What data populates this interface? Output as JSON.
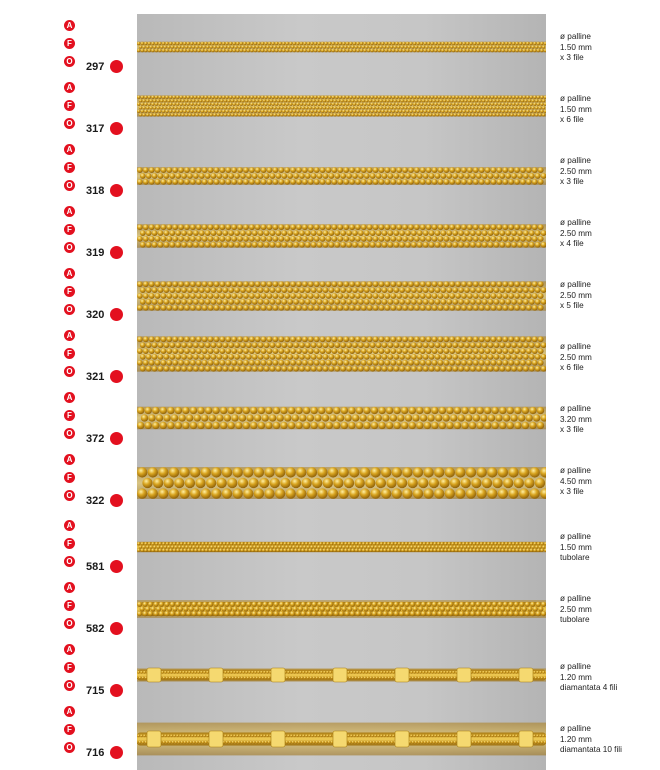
{
  "badges": [
    "A",
    "F",
    "O"
  ],
  "rows": [
    {
      "code": "297",
      "l1": "ø palline",
      "l2": "1.50 mm",
      "l3": "x 3 file",
      "strands": 3,
      "bead": 1.5,
      "kind": "ball"
    },
    {
      "code": "317",
      "l1": "ø palline",
      "l2": "1.50 mm",
      "l3": "x 6 file",
      "strands": 6,
      "bead": 1.5,
      "kind": "ball"
    },
    {
      "code": "318",
      "l1": "ø palline",
      "l2": "2.50 mm",
      "l3": "x 3 file",
      "strands": 3,
      "bead": 2.5,
      "kind": "ball"
    },
    {
      "code": "319",
      "l1": "ø palline",
      "l2": "2.50 mm",
      "l3": "x 4 file",
      "strands": 4,
      "bead": 2.5,
      "kind": "ball"
    },
    {
      "code": "320",
      "l1": "ø palline",
      "l2": "2.50 mm",
      "l3": "x 5 file",
      "strands": 5,
      "bead": 2.5,
      "kind": "ball"
    },
    {
      "code": "321",
      "l1": "ø palline",
      "l2": "2.50 mm",
      "l3": "x 6 file",
      "strands": 6,
      "bead": 2.5,
      "kind": "ball"
    },
    {
      "code": "372",
      "l1": "ø palline",
      "l2": "3.20 mm",
      "l3": "x 3 file",
      "strands": 3,
      "bead": 3.2,
      "kind": "ball"
    },
    {
      "code": "322",
      "l1": "ø palline",
      "l2": "4.50 mm",
      "l3": "x 3 file",
      "strands": 3,
      "bead": 4.5,
      "kind": "ball"
    },
    {
      "code": "581",
      "l1": "ø palline",
      "l2": "1.50 mm",
      "l3": "tubolare",
      "strands": 3,
      "bead": 1.5,
      "kind": "tube"
    },
    {
      "code": "582",
      "l1": "ø palline",
      "l2": "2.50 mm",
      "l3": "tubolare",
      "strands": 3,
      "bead": 2.5,
      "kind": "tube"
    },
    {
      "code": "715",
      "l1": "ø palline",
      "l2": "1.20 mm",
      "l3": "diamantata 4 fili",
      "strands": 4,
      "bead": 1.2,
      "kind": "diamond"
    },
    {
      "code": "716",
      "l1": "ø palline",
      "l2": "1.20 mm",
      "l3": "diamantata 10 fili",
      "strands": 10,
      "bead": 1.2,
      "kind": "diamond"
    }
  ],
  "colors": {
    "red": "#e3101f",
    "gold": "#d9a520",
    "gold_light": "#fff0a6",
    "gold_dark": "#8c5e08"
  }
}
